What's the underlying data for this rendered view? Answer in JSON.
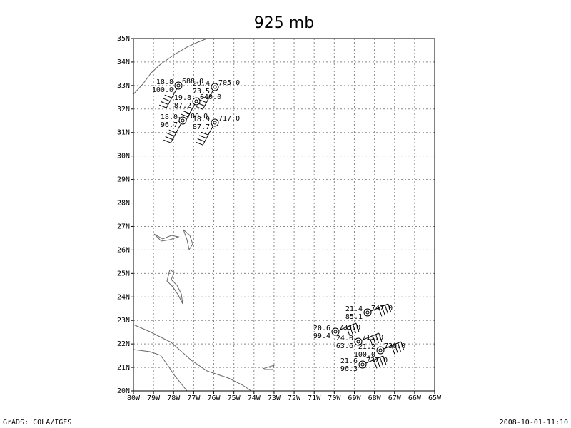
{
  "title": "925 mb",
  "x_labels": [
    "80W",
    "79W",
    "78W",
    "77W",
    "76W",
    "75W",
    "74W",
    "73W",
    "72W",
    "71W",
    "70W",
    "69W",
    "68W",
    "67W",
    "66W",
    "65W"
  ],
  "y_labels": [
    "20N",
    "21N",
    "22N",
    "23N",
    "24N",
    "25N",
    "26N",
    "27N",
    "28N",
    "29N",
    "30N",
    "31N",
    "32N",
    "33N",
    "34N",
    "35N"
  ],
  "stations": [
    {
      "temp": "18.8",
      "height": "688.0",
      "rh": "100.0"
    },
    {
      "temp": "20.4",
      "height": "705.0",
      "rh": "73.5"
    },
    {
      "temp": "19.8",
      "height": "640.0",
      "rh": "87.2"
    },
    {
      "temp": "18.0",
      "height": "700.0",
      "rh": "96.7"
    },
    {
      "temp": "18.9",
      "height": "717.0",
      "rh": "87.7"
    },
    {
      "temp": "21.4",
      "height": "747.0",
      "rh": "85.1"
    },
    {
      "temp": "20.6",
      "height": "733.0",
      "rh": "99.4"
    },
    {
      "temp": "24.0",
      "height": "711.0",
      "rh": "63.6"
    },
    {
      "temp": "21.2",
      "height": "730.0",
      "rh": "100.0"
    },
    {
      "temp": "21.6",
      "height": "737.0",
      "rh": "96.3"
    }
  ],
  "footer_left": "GrADS: COLA/IGES",
  "footer_right": "2008-10-01-11:10"
}
